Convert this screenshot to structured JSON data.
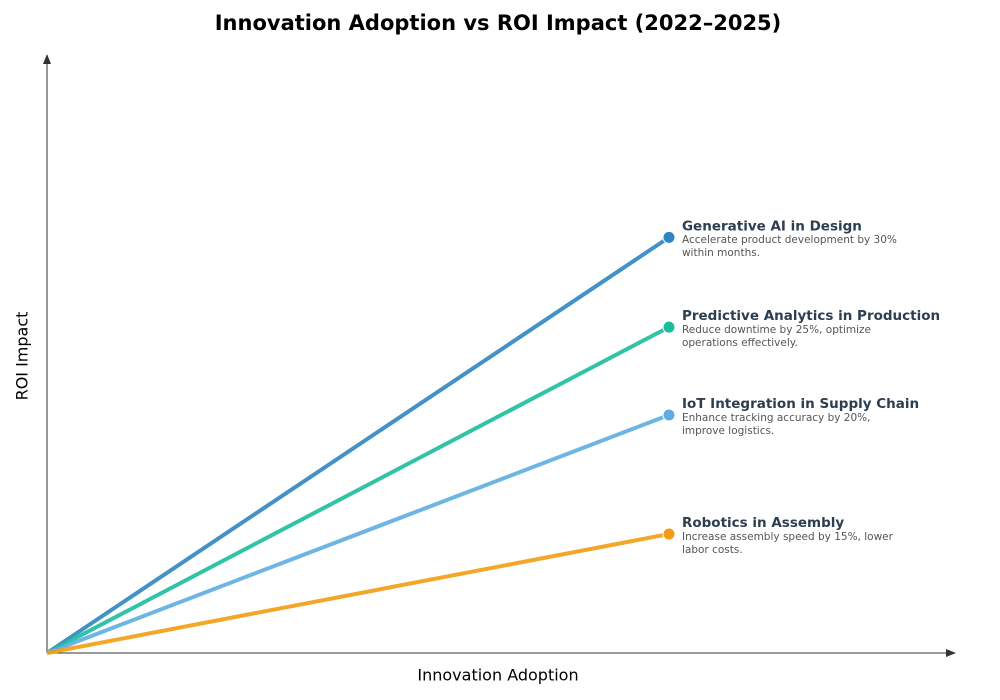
{
  "chart_data": {
    "type": "line",
    "title": "Innovation Adoption vs ROI Impact (2022–2025)",
    "x_label": "Innovation Adoption",
    "y_label": "ROI Impact",
    "xlim": [
      0,
      10
    ],
    "ylim": [
      0,
      10
    ],
    "series": [
      {
        "name": "Generative AI in Design",
        "description": "Accelerate product development by 30% within months.",
        "color": "#2e86c1",
        "x": [
          0,
          6.85
        ],
        "values": [
          0,
          6.95
        ]
      },
      {
        "name": "Predictive Analytics in Production",
        "description": "Reduce downtime by 25%, optimize operations effectively.",
        "color": "#1abc9c",
        "x": [
          0,
          6.85
        ],
        "values": [
          0,
          5.45
        ]
      },
      {
        "name": "IoT Integration in Supply Chain",
        "description": "Enhance tracking accuracy by 20%, improve logistics.",
        "color": "#5dade2",
        "x": [
          0,
          6.85
        ],
        "values": [
          0,
          3.98
        ]
      },
      {
        "name": "Robotics in Assembly",
        "description": "Increase assembly speed by 15%, lower labor costs.",
        "color": "#f39c12",
        "x": [
          0,
          6.85
        ],
        "values": [
          0,
          1.99
        ]
      }
    ]
  }
}
